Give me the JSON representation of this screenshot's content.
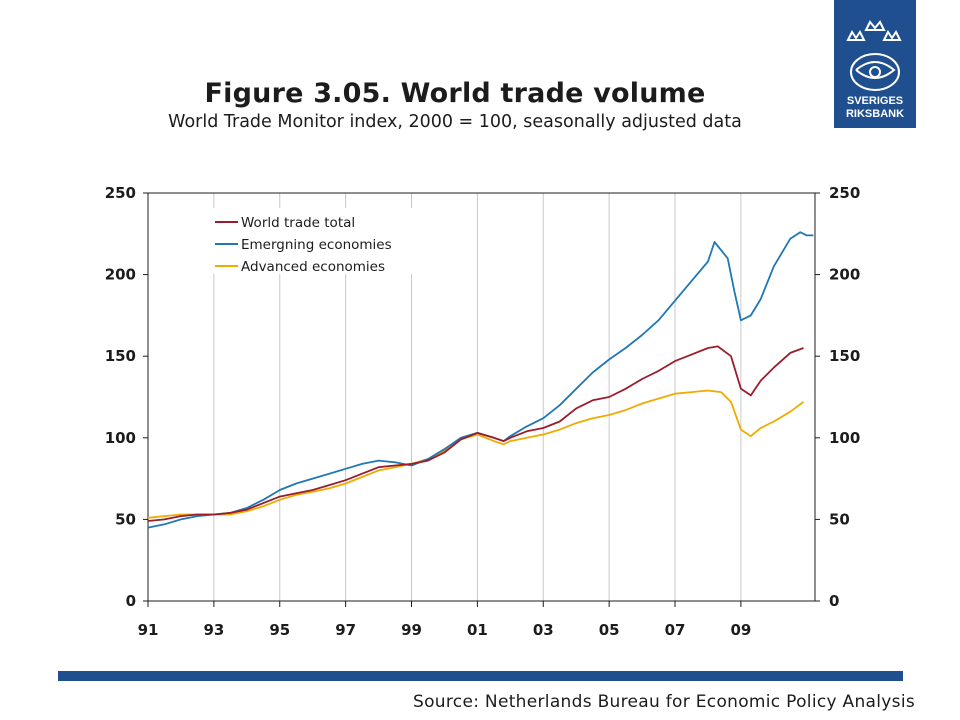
{
  "header": {
    "title": "Figure 3.05. World trade volume",
    "subtitle": "World Trade Monitor index, 2000 = 100, seasonally adjusted data"
  },
  "logo": {
    "text_line1": "SVERIGES",
    "text_line2": "RIKSBANK",
    "color": "#1f4f8f"
  },
  "footer": {
    "source": "Source: Netherlands Bureau for Economic Policy Analysis",
    "bar_color": "#1f4f8f"
  },
  "chart_data": {
    "type": "line",
    "title": "",
    "xlabel": "",
    "ylabel": "",
    "xlim": [
      1991,
      2011.25
    ],
    "ylim": [
      0,
      250
    ],
    "y_ticks": [
      0,
      50,
      100,
      150,
      200,
      250
    ],
    "x_ticks": [
      {
        "value": 1991,
        "label": "91"
      },
      {
        "value": 1993,
        "label": "93"
      },
      {
        "value": 1995,
        "label": "95"
      },
      {
        "value": 1997,
        "label": "97"
      },
      {
        "value": 1999,
        "label": "99"
      },
      {
        "value": 2001,
        "label": "01"
      },
      {
        "value": 2003,
        "label": "03"
      },
      {
        "value": 2005,
        "label": "05"
      },
      {
        "value": 2007,
        "label": "07"
      },
      {
        "value": 2009,
        "label": "09"
      }
    ],
    "grid": "vertical",
    "dual_y_axis": true,
    "legend_position": "top-left",
    "series": [
      {
        "name": "World trade total",
        "color": "#9b1c2c",
        "x": [
          1991.0,
          1991.5,
          1992.0,
          1992.5,
          1993.0,
          1993.5,
          1994.0,
          1994.5,
          1995.0,
          1995.5,
          1996.0,
          1996.5,
          1997.0,
          1997.5,
          1998.0,
          1998.5,
          1999.0,
          1999.5,
          2000.0,
          2000.5,
          2001.0,
          2001.5,
          2001.8,
          2002.0,
          2002.5,
          2003.0,
          2003.5,
          2004.0,
          2004.5,
          2005.0,
          2005.5,
          2006.0,
          2006.5,
          2007.0,
          2007.5,
          2008.0,
          2008.3,
          2008.7,
          2009.0,
          2009.3,
          2009.6,
          2010.0,
          2010.5,
          2010.9
        ],
        "values": [
          49,
          50,
          52,
          53,
          53,
          54,
          56,
          60,
          64,
          66,
          68,
          71,
          74,
          78,
          82,
          83,
          84,
          86,
          91,
          99,
          103,
          100,
          98,
          100,
          104,
          106,
          110,
          118,
          123,
          125,
          130,
          136,
          141,
          147,
          151,
          155,
          156,
          150,
          130,
          126,
          135,
          143,
          152,
          155
        ]
      },
      {
        "name": "Emergning economies",
        "color": "#1f78b4",
        "x": [
          1991.0,
          1991.5,
          1992.0,
          1992.5,
          1993.0,
          1993.5,
          1994.0,
          1994.5,
          1995.0,
          1995.5,
          1996.0,
          1996.5,
          1997.0,
          1997.5,
          1998.0,
          1998.5,
          1999.0,
          1999.5,
          2000.0,
          2000.5,
          2001.0,
          2001.5,
          2001.8,
          2002.0,
          2002.5,
          2003.0,
          2003.5,
          2004.0,
          2004.5,
          2005.0,
          2005.5,
          2006.0,
          2006.5,
          2007.0,
          2007.5,
          2008.0,
          2008.2,
          2008.6,
          2008.8,
          2009.0,
          2009.3,
          2009.6,
          2010.0,
          2010.5,
          2010.8,
          2011.0,
          2011.2
        ],
        "values": [
          45,
          47,
          50,
          52,
          53,
          54,
          57,
          62,
          68,
          72,
          75,
          78,
          81,
          84,
          86,
          85,
          83,
          87,
          93,
          100,
          103,
          100,
          98,
          101,
          107,
          112,
          120,
          130,
          140,
          148,
          155,
          163,
          172,
          184,
          196,
          208,
          220,
          210,
          190,
          172,
          175,
          185,
          205,
          222,
          226,
          224,
          224
        ]
      },
      {
        "name": "Advanced economies",
        "color": "#f0ab00",
        "x": [
          1991.0,
          1991.5,
          1992.0,
          1992.5,
          1993.0,
          1993.5,
          1994.0,
          1994.5,
          1995.0,
          1995.5,
          1996.0,
          1996.5,
          1997.0,
          1997.5,
          1998.0,
          1998.5,
          1999.0,
          1999.5,
          2000.0,
          2000.5,
          2001.0,
          2001.5,
          2001.8,
          2002.0,
          2002.5,
          2003.0,
          2003.5,
          2004.0,
          2004.5,
          2005.0,
          2005.5,
          2006.0,
          2006.5,
          2007.0,
          2007.5,
          2008.0,
          2008.4,
          2008.7,
          2009.0,
          2009.3,
          2009.6,
          2010.0,
          2010.5,
          2010.9
        ],
        "values": [
          51,
          52,
          53,
          53,
          53,
          53,
          55,
          58,
          62,
          65,
          67,
          69,
          72,
          76,
          80,
          82,
          84,
          87,
          92,
          99,
          102,
          98,
          96,
          98,
          100,
          102,
          105,
          109,
          112,
          114,
          117,
          121,
          124,
          127,
          128,
          129,
          128,
          122,
          105,
          101,
          106,
          110,
          116,
          122
        ]
      }
    ]
  }
}
